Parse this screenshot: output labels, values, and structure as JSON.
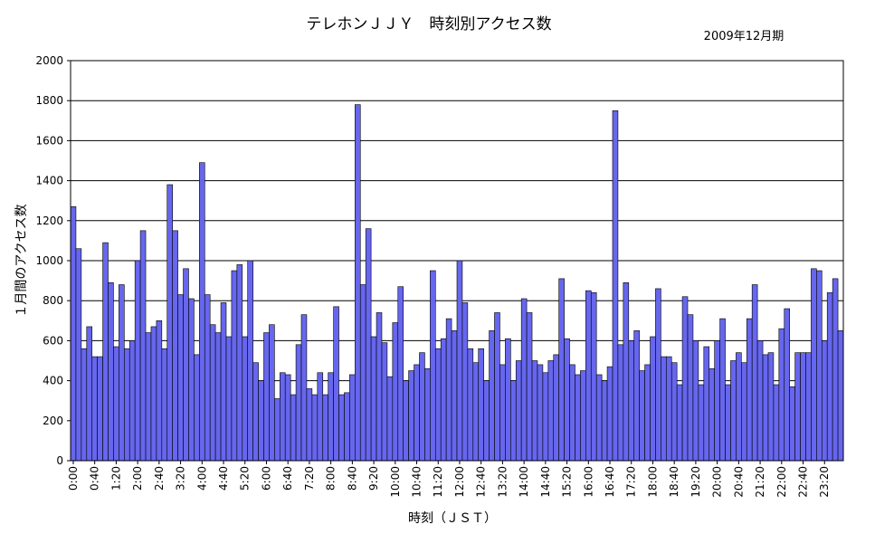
{
  "chart_data": {
    "type": "bar",
    "title": "テレホンＪＪＹ　時刻別アクセス数",
    "subtitle": "2009年12月期",
    "xlabel": "時刻（ＪＳＴ）",
    "ylabel": "１月間のアクセス数",
    "ylim": [
      0,
      2000
    ],
    "y_ticks": [
      0,
      200,
      400,
      600,
      800,
      1000,
      1200,
      1400,
      1600,
      1800,
      2000
    ],
    "grid": true,
    "bar_color": "#6666ee",
    "x_tick_labels": [
      "0:00",
      "0:40",
      "1:20",
      "2:00",
      "2:40",
      "3:20",
      "4:00",
      "4:40",
      "5:20",
      "6:00",
      "6:40",
      "7:20",
      "8:00",
      "8:40",
      "9:20",
      "10:00",
      "10:40",
      "11:20",
      "12:00",
      "12:40",
      "13:20",
      "14:00",
      "14:40",
      "15:20",
      "16:00",
      "16:40",
      "17:20",
      "18:00",
      "18:40",
      "19:20",
      "20:00",
      "20:40",
      "21:20",
      "22:00",
      "22:40",
      "23:20"
    ],
    "x_interval_minutes": 10,
    "values": [
      1270,
      1060,
      560,
      670,
      520,
      520,
      1090,
      890,
      570,
      880,
      560,
      600,
      1000,
      1150,
      640,
      670,
      700,
      560,
      1380,
      1150,
      830,
      960,
      810,
      530,
      1490,
      830,
      680,
      640,
      790,
      620,
      950,
      980,
      620,
      1000,
      490,
      400,
      640,
      680,
      310,
      440,
      430,
      330,
      580,
      730,
      360,
      330,
      440,
      330,
      440,
      770,
      330,
      340,
      430,
      1780,
      880,
      1160,
      620,
      740,
      590,
      420,
      690,
      870,
      400,
      450,
      480,
      540,
      460,
      950,
      560,
      610,
      710,
      650,
      1000,
      790,
      560,
      490,
      560,
      400,
      650,
      740,
      480,
      610,
      400,
      500,
      810,
      740,
      500,
      480,
      440,
      500,
      530,
      910,
      610,
      480,
      430,
      450,
      850,
      840,
      430,
      400,
      470,
      1750,
      580,
      890,
      600,
      650,
      450,
      480,
      620,
      860,
      520,
      520,
      490,
      380,
      820,
      730,
      600,
      380,
      570,
      460,
      600,
      710,
      380,
      500,
      540,
      490,
      710,
      880,
      600,
      530,
      540,
      380,
      660,
      760,
      370,
      540,
      540,
      540,
      960,
      950,
      600,
      840,
      910,
      650
    ]
  }
}
